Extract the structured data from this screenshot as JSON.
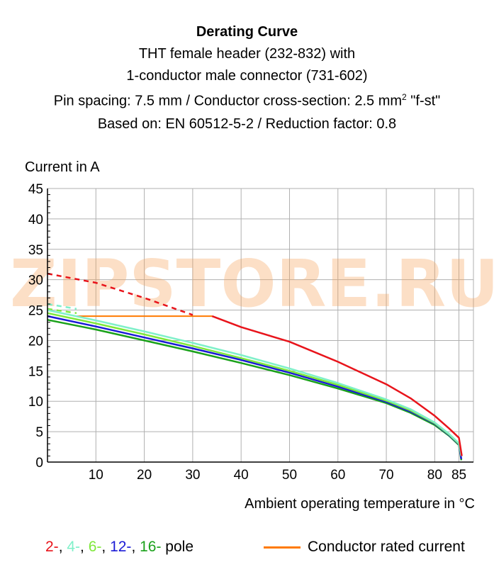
{
  "title_lines": [
    "Derating Curve",
    "THT female header (232-832) with",
    "1-conductor male connector  (731-602)",
    "Pin spacing: 7.5 mm / Conductor cross-section: 2.5 mm",
    "Based on: EN 60512-5-2 / Reduction factor: 0.8"
  ],
  "title_sup": "2",
  "title_suffix": " \"f-st\"",
  "watermark": "ZIPSTORE.RU",
  "legend": {
    "items": [
      {
        "label": "2-",
        "color": "#e8141b"
      },
      {
        "label": "4-",
        "color": "#7ff0c9"
      },
      {
        "label": "6-",
        "color": "#7ee83a"
      },
      {
        "label": "12-",
        "color": "#1a1ad6"
      },
      {
        "label": "16-",
        "color": "#1aa11a"
      }
    ],
    "pole_label": " pole",
    "rated_label": "Conductor rated current",
    "rated_color": "#ff7a00"
  },
  "chart_data": {
    "type": "line",
    "ylabel": "Current in A",
    "xlabel": "Ambient operating temperature in °C",
    "xlim": [
      0,
      88
    ],
    "ylim": [
      0,
      45
    ],
    "xticks": [
      10,
      20,
      30,
      40,
      50,
      60,
      70,
      80,
      85
    ],
    "yticks": [
      0,
      5,
      10,
      15,
      20,
      25,
      30,
      35,
      40,
      45
    ],
    "grid": true,
    "series": [
      {
        "name": "2-",
        "color": "#e8141b",
        "dashed": [
          [
            0,
            31
          ],
          [
            10,
            29.5
          ],
          [
            20,
            27
          ],
          [
            30,
            24.2
          ]
        ],
        "solid": [
          [
            34,
            24
          ],
          [
            40,
            22.2
          ],
          [
            50,
            19.8
          ],
          [
            60,
            16.5
          ],
          [
            70,
            12.8
          ],
          [
            75,
            10.5
          ],
          [
            80,
            7.6
          ],
          [
            83,
            5.5
          ],
          [
            85,
            4
          ],
          [
            85.6,
            1
          ]
        ]
      },
      {
        "name": "4-",
        "color": "#7ff0c9",
        "dashed": [
          [
            0,
            26
          ],
          [
            6,
            25.2
          ]
        ],
        "solid": [
          [
            0,
            25
          ],
          [
            10,
            23.3
          ],
          [
            20,
            21.5
          ],
          [
            30,
            19.6
          ],
          [
            40,
            17.6
          ],
          [
            50,
            15.4
          ],
          [
            60,
            13
          ],
          [
            70,
            10.3
          ],
          [
            75,
            8.7
          ],
          [
            80,
            6.5
          ],
          [
            83,
            4.6
          ],
          [
            85,
            3.1
          ],
          [
            85.5,
            1
          ]
        ]
      },
      {
        "name": "6-",
        "color": "#7ee83a",
        "dashed": [
          [
            0,
            25.2
          ],
          [
            6,
            24.5
          ]
        ],
        "solid": [
          [
            0,
            24.5
          ],
          [
            10,
            22.8
          ],
          [
            20,
            21
          ],
          [
            30,
            19.1
          ],
          [
            40,
            17.1
          ],
          [
            50,
            15
          ],
          [
            60,
            12.7
          ],
          [
            70,
            10.1
          ],
          [
            75,
            8.5
          ],
          [
            80,
            6.4
          ],
          [
            83,
            4.5
          ],
          [
            85,
            3
          ],
          [
            85.5,
            1
          ]
        ]
      },
      {
        "name": "12-",
        "color": "#1a1ad6",
        "solid": [
          [
            0,
            24
          ],
          [
            10,
            22.3
          ],
          [
            20,
            20.5
          ],
          [
            30,
            18.7
          ],
          [
            40,
            16.8
          ],
          [
            50,
            14.7
          ],
          [
            60,
            12.4
          ],
          [
            70,
            9.9
          ],
          [
            75,
            8.3
          ],
          [
            80,
            6.3
          ],
          [
            83,
            4.4
          ],
          [
            85,
            2.9
          ],
          [
            85.5,
            0.5
          ]
        ]
      },
      {
        "name": "16-",
        "color": "#1aa11a",
        "solid": [
          [
            0,
            23.4
          ],
          [
            10,
            21.8
          ],
          [
            20,
            20
          ],
          [
            30,
            18.2
          ],
          [
            40,
            16.3
          ],
          [
            50,
            14.3
          ],
          [
            60,
            12.1
          ],
          [
            70,
            9.7
          ],
          [
            75,
            8.1
          ],
          [
            80,
            6.1
          ],
          [
            83,
            4.3
          ],
          [
            85,
            2.8
          ],
          [
            85.5,
            0.3
          ]
        ]
      }
    ],
    "rated_current": {
      "name": "Conductor rated current",
      "color": "#ff7a00",
      "x": [
        6,
        34
      ],
      "y": 24
    }
  }
}
